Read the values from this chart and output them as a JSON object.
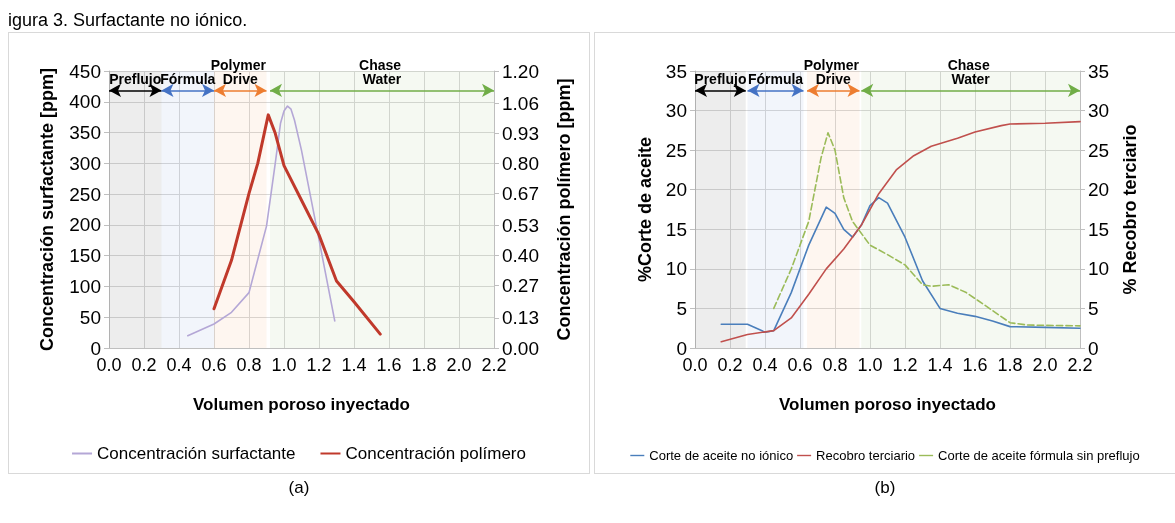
{
  "chart_data": [
    {
      "type": "line",
      "title": "igura 3. Surfactante no iónico.",
      "xlabel": "Volumen poroso inyectado",
      "ylabel": "Concentración surfactante [ppm]",
      "y2label": "Concentración polímero [ppm]",
      "annotations": [
        "(a)"
      ],
      "xlim": [
        0,
        2.2
      ],
      "xticks": [
        {
          "value": 0,
          "label": "0.0"
        },
        {
          "value": 0.2,
          "label": "0.2"
        },
        {
          "value": 0.4,
          "label": "0.4"
        },
        {
          "value": 0.6,
          "label": "0.6"
        },
        {
          "value": 0.8,
          "label": "0.8"
        },
        {
          "value": 1,
          "label": "1.0"
        },
        {
          "value": 1.2,
          "label": "1.2"
        },
        {
          "value": 1.4,
          "label": "1.4"
        },
        {
          "value": 1.6,
          "label": "1.6"
        },
        {
          "value": 1.8,
          "label": "1.8"
        },
        {
          "value": 2,
          "label": "2.0"
        },
        {
          "value": 2.2,
          "label": "2.2"
        }
      ],
      "ylim": [
        0,
        450
      ],
      "yticks": [
        0,
        50,
        100,
        150,
        200,
        250,
        300,
        350,
        400,
        450
      ],
      "y2lim": [
        0,
        1.2
      ],
      "y2ticks": [
        {
          "value": 0,
          "label": "0.00"
        },
        {
          "value": 0.13,
          "label": "0.13"
        },
        {
          "value": 0.27,
          "label": "0.27"
        },
        {
          "value": 0.4,
          "label": "0.40"
        },
        {
          "value": 0.53,
          "label": "0.53"
        },
        {
          "value": 0.67,
          "label": "0.67"
        },
        {
          "value": 0.8,
          "label": "0.80"
        },
        {
          "value": 0.93,
          "label": "0.93"
        },
        {
          "value": 1.06,
          "label": "1.06"
        },
        {
          "value": 1.2,
          "label": "1.20"
        }
      ],
      "grid": true,
      "legend": "bottom",
      "marker": "none",
      "line_style": "solid",
      "bands": [
        {
          "axis": "x",
          "from": 0,
          "to": 0.3,
          "label": "Preflujo",
          "color": "#000000"
        },
        {
          "axis": "x",
          "from": 0.3,
          "to": 0.6,
          "label": "Fórmula",
          "color": "#4472c4"
        },
        {
          "axis": "x",
          "from": 0.6,
          "to": 0.9,
          "label": "Polymer Drive",
          "color": "#ed7d31"
        },
        {
          "axis": "x",
          "from": 0.92,
          "to": 2.2,
          "label": "Chase Water",
          "color": "#70ad47"
        }
      ],
      "series": [
        {
          "name": "Concentración surfactante",
          "color": "#b4a7d6",
          "x": [
            0.45,
            0.6,
            0.7,
            0.8,
            0.9,
            0.95,
            0.98,
            1.0,
            1.02,
            1.04,
            1.06,
            1.1,
            1.2,
            1.29
          ],
          "values": [
            20,
            39,
            58,
            90,
            198,
            300,
            365,
            385,
            393,
            388,
            370,
            321,
            176,
            44
          ]
        },
        {
          "name": "Concentración polímero",
          "color": "#c0392b",
          "axis": "y2",
          "x": [
            0.6,
            0.7,
            0.8,
            0.85,
            0.91,
            0.95,
            1.0,
            1.1,
            1.2,
            1.3,
            1.4,
            1.55
          ],
          "values": [
            0.17,
            0.38,
            0.67,
            0.8,
            1.01,
            0.93,
            0.79,
            0.64,
            0.49,
            0.29,
            0.2,
            0.06
          ]
        }
      ]
    },
    {
      "type": "line",
      "xlabel": "Volumen poroso inyectado",
      "ylabel": "%Corte de aceite",
      "y2label": "% Recobro terciario",
      "annotations": [
        "(b)"
      ],
      "xlim": [
        0,
        2.2
      ],
      "xticks": [
        {
          "value": 0,
          "label": "0.0"
        },
        {
          "value": 0.2,
          "label": "0.2"
        },
        {
          "value": 0.4,
          "label": "0.4"
        },
        {
          "value": 0.6,
          "label": "0.6"
        },
        {
          "value": 0.8,
          "label": "0.8"
        },
        {
          "value": 1,
          "label": "1.0"
        },
        {
          "value": 1.2,
          "label": "1.2"
        },
        {
          "value": 1.4,
          "label": "1.4"
        },
        {
          "value": 1.6,
          "label": "1.6"
        },
        {
          "value": 1.8,
          "label": "1.8"
        },
        {
          "value": 2,
          "label": "2.0"
        },
        {
          "value": 2.2,
          "label": "2.2"
        }
      ],
      "ylim": [
        0,
        35
      ],
      "yticks": [
        0,
        5,
        10,
        15,
        20,
        25,
        30,
        35
      ],
      "y2lim": [
        0,
        35
      ],
      "y2ticks": [
        0,
        5,
        10,
        15,
        20,
        25,
        30,
        35
      ],
      "grid": true,
      "legend": "bottom",
      "marker": "none",
      "bands": [
        {
          "axis": "x",
          "from": 0,
          "to": 0.29,
          "label": "Preflujo",
          "color": "#000000"
        },
        {
          "axis": "x",
          "from": 0.3,
          "to": 0.62,
          "label": "Fórmula",
          "color": "#4472c4"
        },
        {
          "axis": "x",
          "from": 0.64,
          "to": 0.94,
          "label": "Polymer Drive",
          "color": "#ed7d31"
        },
        {
          "axis": "x",
          "from": 0.95,
          "to": 2.2,
          "label": "Chase Water",
          "color": "#70ad47"
        }
      ],
      "series": [
        {
          "name": "Corte de aceite no iónico",
          "color": "#4a7ebb",
          "line_style": "solid",
          "x": [
            0.15,
            0.3,
            0.4,
            0.45,
            0.55,
            0.65,
            0.75,
            0.8,
            0.85,
            0.9,
            0.95,
            1.0,
            1.05,
            1.1,
            1.2,
            1.3,
            1.4,
            1.5,
            1.6,
            1.7,
            1.8,
            2.0,
            2.2
          ],
          "values": [
            3,
            3,
            2,
            2.2,
            7,
            13,
            17.8,
            17,
            15,
            14,
            15.5,
            18,
            19,
            18.3,
            14,
            8.5,
            5,
            4.4,
            4,
            3.4,
            2.7,
            2.6,
            2.5
          ]
        },
        {
          "name": "Recobro terciario",
          "color": "#c0504d",
          "line_style": "solid",
          "axis": "y2",
          "x": [
            0.15,
            0.3,
            0.45,
            0.55,
            0.65,
            0.75,
            0.85,
            0.95,
            1.05,
            1.15,
            1.25,
            1.35,
            1.5,
            1.6,
            1.75,
            1.8,
            2.0,
            2.2
          ],
          "values": [
            0.8,
            1.7,
            2.2,
            3.8,
            6.8,
            10,
            12.5,
            15.5,
            19.5,
            22.5,
            24.3,
            25.5,
            26.5,
            27.3,
            28.1,
            28.3,
            28.4,
            28.6
          ]
        },
        {
          "name": "Corte de aceite fórmula sin preflujo",
          "color": "#9bbb59",
          "line_style": "dashed",
          "x": [
            0.45,
            0.55,
            0.65,
            0.72,
            0.76,
            0.8,
            0.85,
            0.9,
            1.0,
            1.1,
            1.2,
            1.3,
            1.35,
            1.45,
            1.55,
            1.65,
            1.8,
            1.9,
            2.2
          ],
          "values": [
            5,
            10,
            16,
            24,
            27.2,
            25,
            19,
            16,
            13,
            11.8,
            10.5,
            8,
            7.8,
            8,
            7,
            5.5,
            3.2,
            2.9,
            2.8
          ]
        }
      ]
    }
  ]
}
